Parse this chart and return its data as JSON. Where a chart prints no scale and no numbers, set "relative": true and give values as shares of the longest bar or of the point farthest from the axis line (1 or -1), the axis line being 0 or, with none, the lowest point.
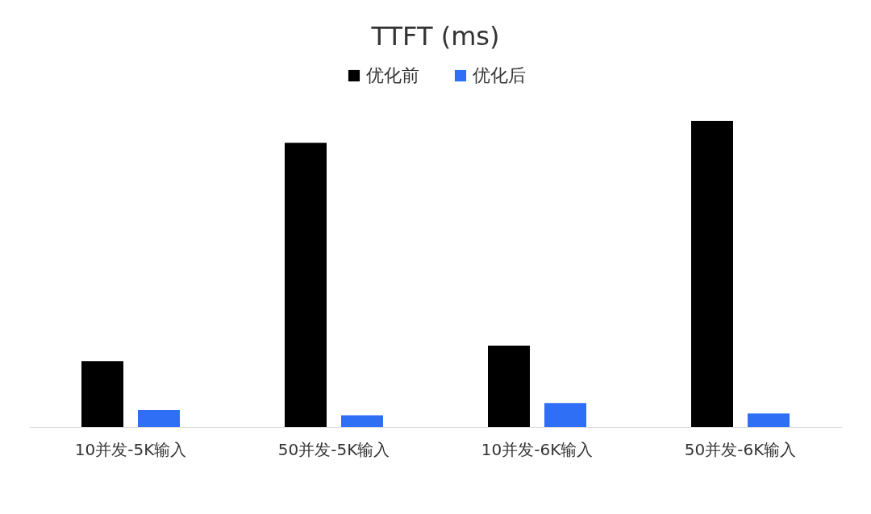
{
  "chart_data": {
    "type": "bar",
    "title": "TTFT (ms)",
    "relative": true,
    "legend": "top",
    "categories": [
      "10并发-5K输入",
      "50并发-5K输入",
      "10并发-6K输入",
      "50并发-6K输入"
    ],
    "series": [
      {
        "name": "优化前",
        "color": "#000000",
        "values": [
          0.215,
          0.928,
          0.266,
          1
        ]
      },
      {
        "name": "优化后",
        "color": "#2f6ff5",
        "values": [
          0.055,
          0.038,
          0.078,
          0.044
        ]
      }
    ]
  }
}
